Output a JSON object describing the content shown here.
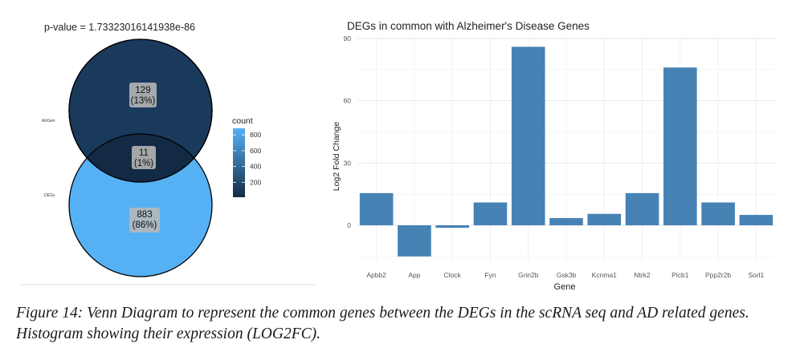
{
  "venn": {
    "pvalue": "p-value = 1.73323016141938e-86",
    "set_labels": [
      "AlzGen",
      "DEGs"
    ],
    "regions": [
      {
        "id": "alz_only",
        "count": "129",
        "pct": "(13%)",
        "value": 129,
        "color": "#1a3a5c"
      },
      {
        "id": "overlap",
        "count": "11",
        "pct": "(1%)",
        "value": 11,
        "color": "#132a44"
      },
      {
        "id": "degs_only",
        "count": "883",
        "pct": "(86%)",
        "value": 883,
        "color": "#56b0f4"
      }
    ],
    "legend": {
      "title": "count",
      "ticks": [
        "800",
        "600",
        "400",
        "200"
      ],
      "tick_values": [
        800,
        600,
        400,
        200
      ],
      "range": [
        11,
        883
      ],
      "colors": {
        "low": "#132b43",
        "high": "#56b1f7"
      }
    }
  },
  "chart_data": {
    "type": "bar",
    "title": "DEGs in common with Alzheimer's Disease Genes",
    "xlabel": "Gene",
    "ylabel": "Log2 Fold Change",
    "categories": [
      "Apbb2",
      "App",
      "Clock",
      "Fyn",
      "Grin2b",
      "Gsk3b",
      "Kcnma1",
      "Ntrk2",
      "Plcb1",
      "Ppp2r2b",
      "Sorl1"
    ],
    "values": [
      15.5,
      -15,
      -1.2,
      11,
      86,
      3.5,
      5.5,
      15.5,
      76,
      11,
      5
    ],
    "yticks": [
      0,
      30,
      60,
      90
    ],
    "ylim": [
      -17,
      90
    ],
    "bar_color": "#4682b4",
    "grid": true
  },
  "caption": "Figure 14: Venn Diagram to represent the common genes between the DEGs in the scRNA seq and AD related genes. Histogram showing their expression (LOG2FC)."
}
